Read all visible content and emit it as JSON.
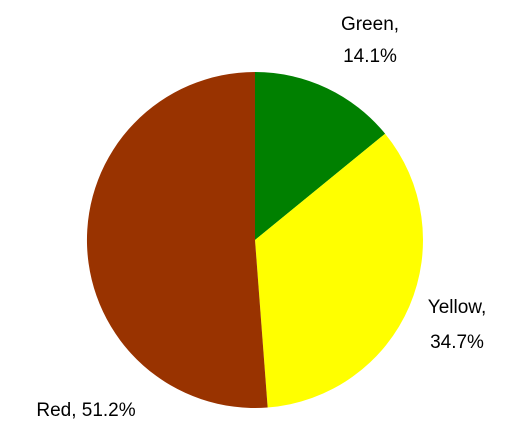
{
  "chart_data": {
    "type": "pie",
    "title": "",
    "start_angle_deg": 0,
    "direction": "clockwise",
    "slices": [
      {
        "name": "Green",
        "value": 14.1,
        "label_line1": "Green,",
        "label_line2": "14.1%",
        "color": "#008000"
      },
      {
        "name": "Yellow",
        "value": 34.7,
        "label_line1": "Yellow,",
        "label_line2": "34.7%",
        "color": "#FFFF00"
      },
      {
        "name": "Red",
        "value": 51.2,
        "label_line1": "Red, 51.2%",
        "label_line2": "",
        "color": "#993300"
      }
    ],
    "legend": "none"
  }
}
